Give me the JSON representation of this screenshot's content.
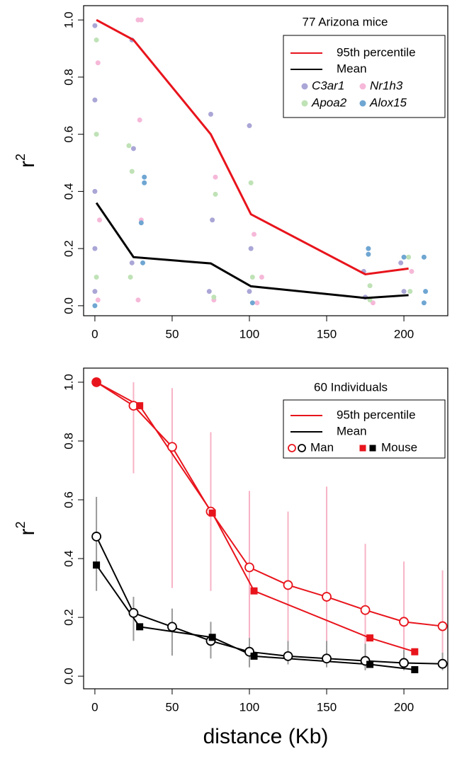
{
  "chart_data": [
    {
      "type": "scatter",
      "title": "77 Arizona mice",
      "ylabel": "r",
      "ylabel_sup": "2",
      "xlim": [
        -7.3,
        228.4
      ],
      "ylim": [
        -0.035,
        1.05
      ],
      "xticks": [
        0,
        50,
        100,
        150,
        200
      ],
      "yticks": [
        {
          "value": 0,
          "label": "0.0"
        },
        {
          "value": 0.2,
          "label": "0.2"
        },
        {
          "value": 0.4,
          "label": "0.4"
        },
        {
          "value": 0.6,
          "label": "0.6"
        },
        {
          "value": 0.8,
          "label": "0.8"
        },
        {
          "value": 1,
          "label": "1.0"
        }
      ],
      "series": [
        {
          "name": "C3ar1",
          "color": "#aaa6d6",
          "style": "points",
          "x": [
            0,
            0,
            0,
            0,
            0,
            24,
            25,
            24,
            75,
            76,
            74,
            100,
            101,
            100,
            174,
            175,
            198,
            200
          ],
          "values": [
            0.98,
            0.72,
            0.4,
            0.2,
            0.05,
            0.93,
            0.55,
            0.15,
            0.67,
            0.3,
            0.05,
            0.63,
            0.2,
            0.05,
            0.12,
            0.03,
            0.15,
            0.05
          ]
        },
        {
          "name": "Nr1h3",
          "color": "#f6b8d8",
          "style": "points",
          "x": [
            2,
            3,
            2,
            28,
            30,
            29,
            30,
            28,
            78,
            77,
            103,
            108,
            105,
            180,
            205
          ],
          "values": [
            0.85,
            0.3,
            0.02,
            1.0,
            1.0,
            0.65,
            0.3,
            0.02,
            0.45,
            0.02,
            0.25,
            0.1,
            0.01,
            0.01,
            0.12
          ]
        },
        {
          "name": "Apoa2",
          "color": "#bfe2b6",
          "style": "points",
          "x": [
            1,
            1,
            1,
            22,
            24,
            23,
            78,
            77,
            101,
            102,
            178,
            178,
            203,
            204
          ],
          "values": [
            0.93,
            0.6,
            0.1,
            0.56,
            0.47,
            0.1,
            0.39,
            0.03,
            0.43,
            0.1,
            0.07,
            0.02,
            0.17,
            0.05
          ]
        },
        {
          "name": "Alox15",
          "color": "#6fa6d2",
          "style": "points",
          "x": [
            0,
            32,
            32,
            30,
            31,
            102,
            177,
            177,
            200,
            213,
            214,
            213
          ],
          "values": [
            0.0,
            0.45,
            0.43,
            0.29,
            0.15,
            0.01,
            0.2,
            0.18,
            0.17,
            0.17,
            0.05,
            0.01
          ]
        },
        {
          "name": "95th percentile",
          "color": "#e8141c",
          "style": "line",
          "x": [
            1,
            25,
            75,
            101,
            175,
            203
          ],
          "values": [
            1.0,
            0.93,
            0.6,
            0.32,
            0.11,
            0.13
          ]
        },
        {
          "name": "Mean",
          "color": "#000000",
          "style": "line",
          "x": [
            1,
            25,
            75,
            101,
            175,
            203
          ],
          "values": [
            0.36,
            0.17,
            0.148,
            0.068,
            0.027,
            0.037
          ]
        }
      ]
    },
    {
      "type": "line",
      "title": "60 Individuals",
      "ylabel": "r",
      "ylabel_sup": "2",
      "xlabel": "distance (Kb)",
      "xlim": [
        -7.3,
        228.4
      ],
      "ylim": [
        -0.043,
        1.048
      ],
      "xticks": [
        0,
        50,
        100,
        150,
        200
      ],
      "yticks": [
        {
          "value": 0,
          "label": "0.0"
        },
        {
          "value": 0.2,
          "label": "0.2"
        },
        {
          "value": 0.4,
          "label": "0.4"
        },
        {
          "value": 0.6,
          "label": "0.6"
        },
        {
          "value": 0.8,
          "label": "0.8"
        },
        {
          "value": 1,
          "label": "1.0"
        }
      ],
      "legend": [
        {
          "label": "95th percentile",
          "color": "#e8141c"
        },
        {
          "label": "Mean",
          "color": "#000000"
        }
      ],
      "marker_legend": [
        {
          "label": "Man",
          "marker": "circle"
        },
        {
          "label": "Mouse",
          "marker": "square"
        }
      ],
      "series": [
        {
          "color": "#e8141c",
          "bar_color": "#f7b3c6",
          "marker": "circle",
          "x": [
            1,
            25,
            50,
            75,
            100,
            125,
            150,
            175,
            200,
            225
          ],
          "values": [
            1.0,
            0.92,
            0.78,
            0.56,
            0.37,
            0.31,
            0.27,
            0.225,
            0.185,
            0.17
          ],
          "lower": [
            1.0,
            0.69,
            0.3,
            0.29,
            0.1,
            0.12,
            0.08,
            0.06,
            0.05,
            0.06
          ],
          "upper": [
            1.0,
            1.0,
            0.98,
            0.83,
            0.63,
            0.56,
            0.645,
            0.45,
            0.39,
            0.36
          ]
        },
        {
          "color": "#e8141c",
          "marker": "square",
          "x": [
            1,
            29,
            76,
            103,
            178,
            207
          ],
          "values": [
            1.0,
            0.92,
            0.555,
            0.29,
            0.13,
            0.083
          ]
        },
        {
          "color": "#000000",
          "bar_color": "#9a9a9a",
          "marker": "circle",
          "x": [
            1,
            25,
            50,
            75,
            100,
            125,
            150,
            175,
            200,
            225
          ],
          "values": [
            0.475,
            0.215,
            0.168,
            0.12,
            0.083,
            0.068,
            0.06,
            0.052,
            0.045,
            0.042
          ],
          "lower": [
            0.29,
            0.12,
            0.07,
            0.06,
            0.03,
            0.04,
            0.03,
            0.02,
            0.02,
            0.02
          ],
          "upper": [
            0.61,
            0.27,
            0.23,
            0.185,
            0.13,
            0.12,
            0.12,
            0.11,
            0.09,
            0.08
          ]
        },
        {
          "color": "#000000",
          "marker": "square",
          "x": [
            1,
            29,
            76,
            103,
            178,
            207
          ],
          "values": [
            0.378,
            0.168,
            0.132,
            0.068,
            0.04,
            0.022
          ]
        }
      ]
    }
  ]
}
